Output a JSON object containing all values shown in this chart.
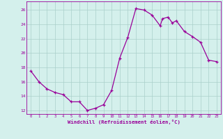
{
  "x_full": [
    0,
    1,
    2,
    3,
    4,
    5,
    6,
    7,
    8,
    9,
    10,
    11,
    12,
    13,
    14,
    15,
    16,
    16.3,
    17,
    17.5,
    18,
    19,
    20,
    21,
    22,
    23
  ],
  "y_full": [
    17.5,
    16.0,
    15.0,
    14.5,
    14.2,
    13.2,
    13.2,
    12.0,
    12.3,
    12.8,
    14.8,
    19.3,
    22.2,
    26.2,
    26.0,
    25.3,
    23.8,
    24.8,
    25.0,
    24.2,
    24.5,
    23.0,
    22.3,
    21.5,
    19.0,
    18.8
  ],
  "bg_color": "#d4f0ec",
  "line_color": "#990099",
  "marker_color": "#990099",
  "grid_color": "#aacfca",
  "axis_color": "#990099",
  "tick_label_color": "#990099",
  "xlabel": "Windchill (Refroidissement éolien,°C)",
  "xlabel_color": "#990099",
  "yticks": [
    12,
    14,
    16,
    18,
    20,
    22,
    24,
    26
  ],
  "xticks": [
    0,
    1,
    2,
    3,
    4,
    5,
    6,
    7,
    8,
    9,
    10,
    11,
    12,
    13,
    14,
    15,
    16,
    17,
    18,
    19,
    20,
    21,
    22,
    23
  ],
  "ylim": [
    11.5,
    27.2
  ],
  "xlim": [
    -0.5,
    23.5
  ]
}
